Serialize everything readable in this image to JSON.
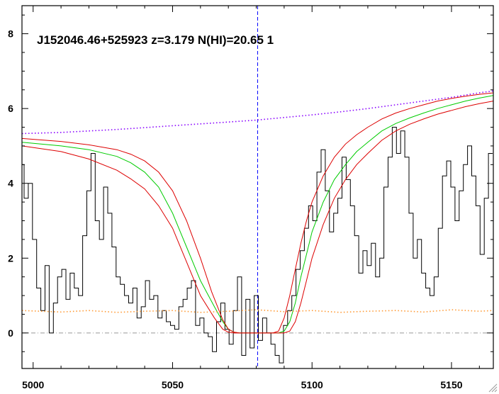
{
  "chart_data": {
    "type": "line",
    "title": "J152046.46+525923 z=3.179 N(HI)=20.65 1",
    "xlabel": "",
    "ylabel": "",
    "xlim": [
      4996,
      5165
    ],
    "ylim": [
      -0.95,
      8.75
    ],
    "xticks": [
      5000,
      5050,
      5100,
      5150
    ],
    "xtick_labels": [
      "5000",
      "5050",
      "5100",
      "5150"
    ],
    "yticks": [
      0,
      2,
      4,
      6,
      8
    ],
    "ytick_labels": [
      "0",
      "2",
      "4",
      "6",
      "8"
    ],
    "vertical_marker": 5080.5,
    "zero_level": 0,
    "grid": false,
    "colors": {
      "flux": "#000000",
      "fit_best": "#00cc00",
      "fit_bounds": "#dd0000",
      "continuum": "#8800ff",
      "error": "#ff9933",
      "marker": "#0000ff",
      "zero": "#999999"
    },
    "series": [
      {
        "style": "step",
        "color": "#000000",
        "x": [
          4996,
          4997.5,
          4999,
          5000.5,
          5002,
          5003.5,
          5005,
          5006.5,
          5008,
          5009.5,
          5011,
          5012.5,
          5014,
          5015.5,
          5017,
          5018.5,
          5020,
          5021.5,
          5023,
          5024.5,
          5026,
          5027.5,
          5029,
          5030.5,
          5032,
          5033.5,
          5035,
          5036.5,
          5038,
          5039.5,
          5041,
          5042.5,
          5044,
          5045.5,
          5047,
          5048.5,
          5050,
          5051.5,
          5053,
          5054.5,
          5056,
          5057.5,
          5059,
          5060.5,
          5062,
          5063.5,
          5065,
          5066.5,
          5068,
          5069.5,
          5071,
          5072.5,
          5074,
          5075.5,
          5077,
          5078.5,
          5080,
          5081.5,
          5083,
          5084.5,
          5086,
          5087.5,
          5089,
          5090.5,
          5092,
          5093.5,
          5095,
          5096.5,
          5098,
          5099.5,
          5101,
          5102.5,
          5104,
          5105.5,
          5107,
          5108.5,
          5110,
          5111.5,
          5113,
          5114.5,
          5116,
          5117.5,
          5119,
          5120.5,
          5122,
          5123.5,
          5125,
          5126.5,
          5128,
          5129.5,
          5131,
          5132.5,
          5134,
          5135.5,
          5137,
          5138.5,
          5140,
          5141.5,
          5143,
          5144.5,
          5146,
          5147.5,
          5149,
          5150.5,
          5152,
          5153.5,
          5155,
          5156.5,
          5158,
          5159.5,
          5161,
          5162.5,
          5164
        ],
        "y": [
          4.5,
          3.6,
          4.0,
          2.5,
          1.2,
          0.6,
          1.8,
          0.0,
          0.8,
          1.5,
          1.7,
          0.9,
          1.6,
          1.2,
          1.0,
          2.6,
          3.8,
          4.8,
          3.0,
          2.5,
          3.9,
          3.2,
          2.3,
          1.5,
          1.3,
          1.0,
          0.8,
          1.2,
          0.4,
          0.7,
          1.4,
          0.9,
          1.0,
          0.4,
          0.6,
          0.3,
          0.2,
          0.1,
          0.7,
          0.9,
          1.2,
          1.4,
          0.2,
          0.4,
          0.0,
          -0.1,
          -0.5,
          0.3,
          0.8,
          0.1,
          -0.3,
          0.6,
          1.5,
          -0.6,
          0.9,
          -0.4,
          1.0,
          -0.2,
          0.4,
          0.0,
          -0.3,
          -0.6,
          -0.8,
          0.2,
          0.6,
          1.0,
          1.7,
          2.2,
          2.8,
          3.4,
          3.0,
          4.3,
          4.9,
          3.8,
          2.7,
          3.2,
          3.6,
          4.7,
          4.1,
          3.4,
          2.6,
          1.6,
          2.2,
          1.8,
          2.4,
          1.5,
          2.0,
          3.9,
          4.7,
          5.5,
          4.8,
          5.4,
          4.7,
          3.2,
          2.0,
          2.5,
          1.6,
          1.2,
          1.0,
          1.5,
          2.8,
          4.2,
          4.6,
          3.9,
          3.0,
          3.8,
          4.5,
          5.0,
          4.2,
          3.4,
          2.1,
          3.6,
          4.8
        ]
      },
      {
        "style": "line",
        "color": "#00cc00",
        "x": [
          4996,
          5010,
          5020,
          5030,
          5035,
          5040,
          5045,
          5050,
          5055,
          5060,
          5065,
          5068,
          5070,
          5072,
          5074,
          5076,
          5078,
          5080,
          5082,
          5084,
          5086,
          5088,
          5090,
          5092,
          5094,
          5096,
          5098,
          5100,
          5104,
          5108,
          5112,
          5116,
          5120,
          5125,
          5130,
          5135,
          5140,
          5145,
          5150,
          5155,
          5160,
          5165
        ],
        "y": [
          5.1,
          5.0,
          4.9,
          4.72,
          4.55,
          4.3,
          3.9,
          3.2,
          2.3,
          1.4,
          0.7,
          0.3,
          0.1,
          0.02,
          0.0,
          0.0,
          0.0,
          0.0,
          0.0,
          0.0,
          0.0,
          0.0,
          0.05,
          0.3,
          0.8,
          1.5,
          2.1,
          2.7,
          3.5,
          4.1,
          4.5,
          4.85,
          5.1,
          5.4,
          5.6,
          5.75,
          5.88,
          6.0,
          6.1,
          6.2,
          6.28,
          6.35
        ]
      },
      {
        "style": "line",
        "color": "#dd0000",
        "x": [
          4996,
          5010,
          5020,
          5030,
          5035,
          5040,
          5045,
          5050,
          5055,
          5060,
          5064,
          5068,
          5070,
          5072,
          5074,
          5076,
          5078,
          5080,
          5082,
          5084,
          5086,
          5088,
          5090,
          5092,
          5094,
          5096,
          5098,
          5100,
          5104,
          5108,
          5112,
          5116,
          5120,
          5125,
          5130,
          5135,
          5140,
          5145,
          5150,
          5155,
          5160,
          5165
        ],
        "y": [
          5.2,
          5.12,
          5.03,
          4.9,
          4.78,
          4.6,
          4.3,
          3.8,
          3.0,
          2.0,
          1.1,
          0.35,
          0.1,
          0.02,
          0.0,
          0.0,
          0.0,
          0.0,
          0.0,
          0.0,
          0.0,
          0.05,
          0.4,
          1.0,
          1.7,
          2.4,
          3.0,
          3.5,
          4.2,
          4.7,
          5.05,
          5.3,
          5.5,
          5.72,
          5.88,
          6.0,
          6.1,
          6.2,
          6.27,
          6.33,
          6.38,
          6.42
        ]
      },
      {
        "style": "line",
        "color": "#dd0000",
        "x": [
          4996,
          5010,
          5020,
          5030,
          5035,
          5040,
          5045,
          5050,
          5055,
          5060,
          5065,
          5068,
          5070,
          5072,
          5074,
          5076,
          5078,
          5080,
          5082,
          5084,
          5086,
          5088,
          5090,
          5092,
          5094,
          5096,
          5098,
          5100,
          5104,
          5108,
          5112,
          5116,
          5120,
          5125,
          5130,
          5135,
          5140,
          5145,
          5150,
          5155,
          5160,
          5165
        ],
        "y": [
          5.0,
          4.85,
          4.65,
          4.35,
          4.12,
          3.85,
          3.4,
          2.8,
          1.9,
          1.0,
          0.4,
          0.1,
          0.02,
          0.0,
          0.0,
          0.0,
          0.0,
          0.0,
          0.0,
          0.0,
          0.0,
          0.0,
          0.0,
          0.05,
          0.3,
          0.8,
          1.4,
          2.0,
          2.9,
          3.6,
          4.1,
          4.5,
          4.8,
          5.15,
          5.4,
          5.58,
          5.72,
          5.85,
          5.95,
          6.05,
          6.13,
          6.2
        ]
      },
      {
        "style": "dotted",
        "color": "#8800ff",
        "x": [
          4996,
          5010,
          5020,
          5030,
          5040,
          5050,
          5060,
          5070,
          5080,
          5090,
          5100,
          5110,
          5120,
          5130,
          5140,
          5150,
          5160,
          5165
        ],
        "y": [
          5.33,
          5.36,
          5.4,
          5.44,
          5.49,
          5.54,
          5.59,
          5.64,
          5.69,
          5.76,
          5.83,
          5.91,
          6.0,
          6.1,
          6.2,
          6.3,
          6.42,
          6.47
        ]
      },
      {
        "style": "dotted",
        "color": "#ff9933",
        "x": [
          4996,
          5010,
          5020,
          5030,
          5040,
          5050,
          5060,
          5070,
          5080,
          5090,
          5100,
          5110,
          5120,
          5130,
          5140,
          5150,
          5160,
          5165
        ],
        "y": [
          0.6,
          0.56,
          0.6,
          0.55,
          0.58,
          0.6,
          0.55,
          0.58,
          0.62,
          0.57,
          0.6,
          0.55,
          0.58,
          0.6,
          0.56,
          0.62,
          0.58,
          0.6
        ]
      }
    ]
  }
}
